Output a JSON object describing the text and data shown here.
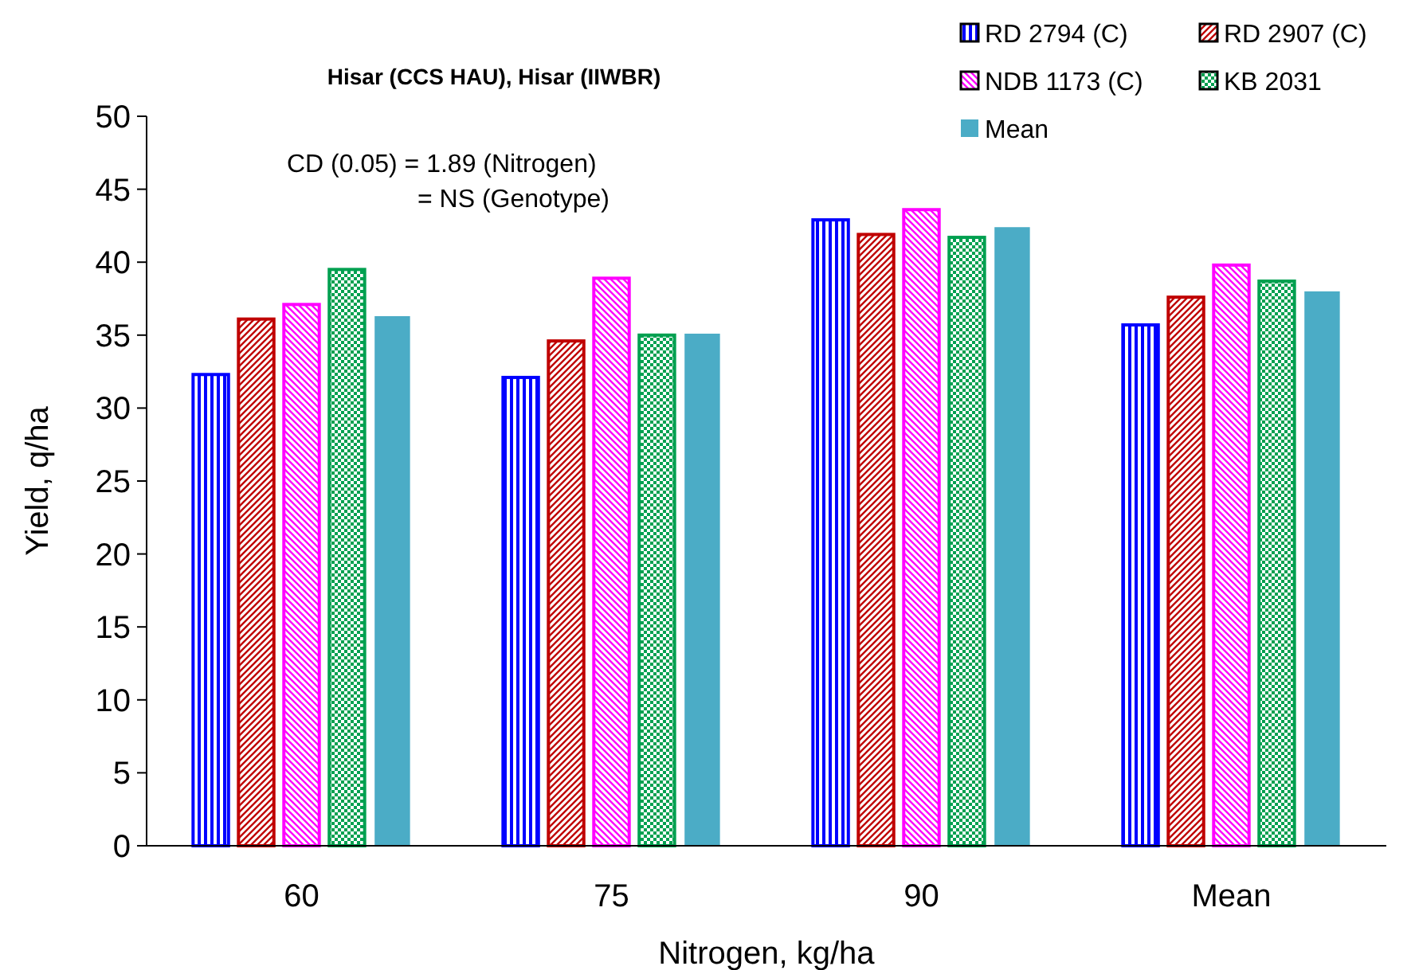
{
  "chart_data": {
    "type": "bar",
    "title": "Hisar (CCS HAU), Hisar (IIWBR)",
    "xlabel": "Nitrogen, kg/ha",
    "ylabel": "Yield, q/ha",
    "annotations": [
      "CD (0.05) = 1.89 (Nitrogen)",
      "= NS (Genotype)"
    ],
    "categories": [
      "60",
      "75",
      "90",
      "Mean"
    ],
    "series": [
      {
        "name": "RD 2794 (C)",
        "color": "#0000ff",
        "values": [
          32.3,
          32.1,
          42.9,
          35.7
        ]
      },
      {
        "name": "RD 2907 (C)",
        "color": "#c00000",
        "values": [
          36.1,
          34.6,
          41.9,
          37.6
        ]
      },
      {
        "name": "NDB 1173 (C)",
        "color": "#ff00ff",
        "values": [
          37.1,
          38.9,
          43.6,
          39.8
        ]
      },
      {
        "name": "KB 2031",
        "color": "#00a050",
        "values": [
          39.5,
          35.0,
          41.7,
          38.7
        ]
      },
      {
        "name": "Mean",
        "color": "#4bacc6",
        "values": [
          36.3,
          35.1,
          42.4,
          38.0
        ]
      }
    ],
    "ylim": [
      0,
      50
    ],
    "yticks": [
      0,
      5,
      10,
      15,
      20,
      25,
      30,
      35,
      40,
      45,
      50
    ],
    "grid": false,
    "legend": "top right"
  }
}
